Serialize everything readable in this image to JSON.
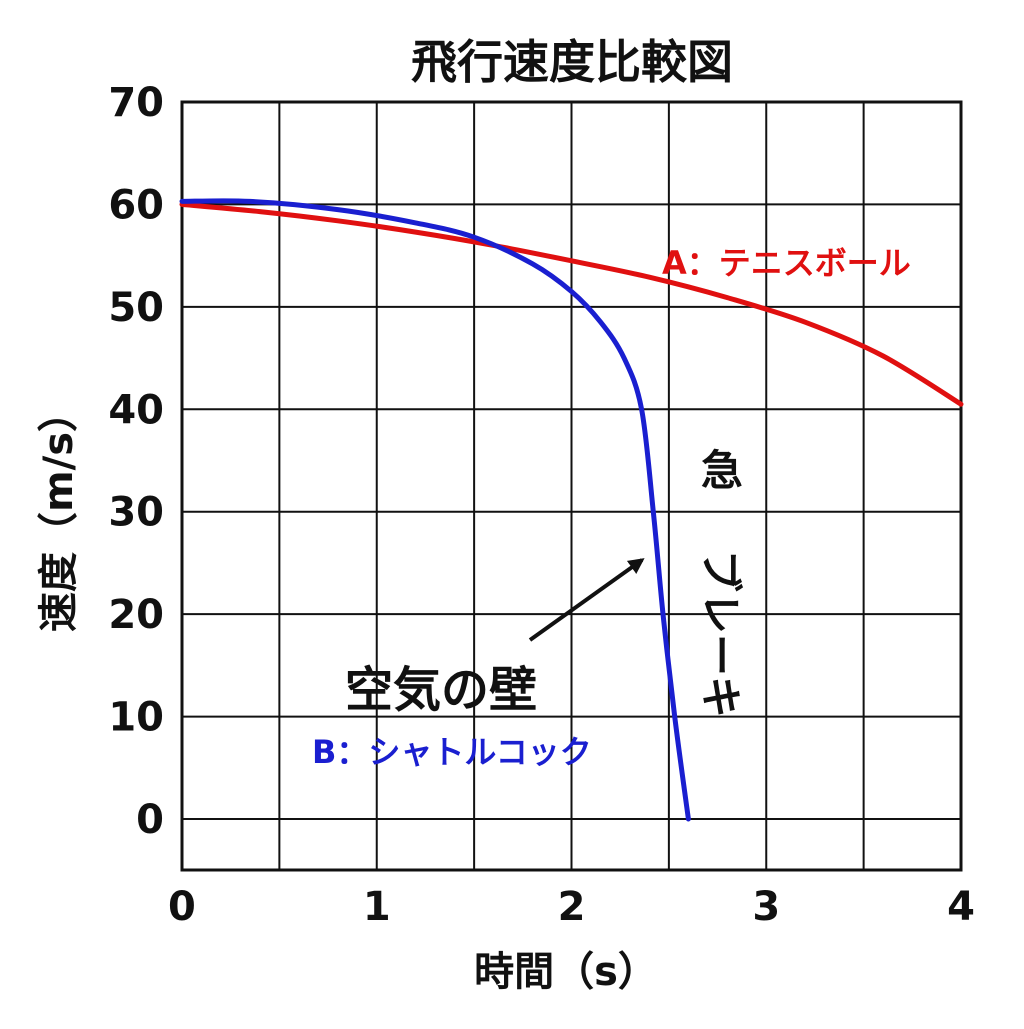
{
  "chart_data": {
    "type": "line",
    "title": "飛行速度比較図",
    "xlabel": "時間（s）",
    "ylabel": "速度（m/s）",
    "xlim": [
      0,
      4
    ],
    "ylim": [
      0,
      70
    ],
    "x_ticks": [
      "0",
      "1",
      "2",
      "3",
      "4"
    ],
    "y_ticks": [
      "0",
      "10",
      "20",
      "30",
      "40",
      "50",
      "60",
      "70"
    ],
    "grid": true,
    "series": [
      {
        "name": "A：テニスボール",
        "color": "#e01010",
        "points": [
          [
            0,
            60
          ],
          [
            0.4,
            59.3
          ],
          [
            0.8,
            58.4
          ],
          [
            1.2,
            57.3
          ],
          [
            1.6,
            56.0
          ],
          [
            2.0,
            54.5
          ],
          [
            2.4,
            52.9
          ],
          [
            2.8,
            50.9
          ],
          [
            3.2,
            48.5
          ],
          [
            3.6,
            45.2
          ],
          [
            4.0,
            40.5
          ]
        ]
      },
      {
        "name": "B：シャトルコック",
        "color": "#1a1fd0",
        "points": [
          [
            0,
            60.3
          ],
          [
            0.35,
            60.3
          ],
          [
            0.8,
            59.5
          ],
          [
            1.2,
            58.2
          ],
          [
            1.5,
            56.8
          ],
          [
            1.8,
            54.2
          ],
          [
            2.0,
            51.5
          ],
          [
            2.15,
            48.5
          ],
          [
            2.27,
            45.0
          ],
          [
            2.36,
            40.0
          ],
          [
            2.42,
            30.0
          ],
          [
            2.47,
            20.0
          ],
          [
            2.53,
            10.0
          ],
          [
            2.6,
            0.0
          ]
        ]
      }
    ],
    "annotations": {
      "air_wall": "空気の壁",
      "sudden_brake_1": "急",
      "sudden_brake_2": "ブレーキ"
    }
  }
}
